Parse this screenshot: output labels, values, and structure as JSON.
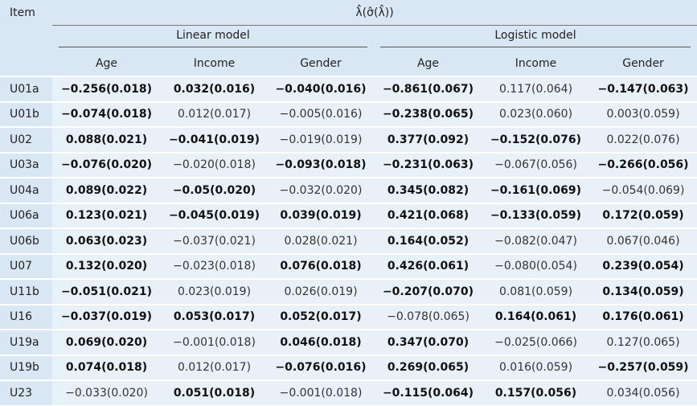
{
  "header": {
    "item": "Item",
    "estimate": "λ̂(σ̂(λ̂))",
    "groups": [
      "Linear model",
      "Logistic model"
    ],
    "columns": [
      "Age",
      "Income",
      "Gender",
      "Age",
      "Income",
      "Gender"
    ]
  },
  "table": {
    "rows": [
      {
        "item": "U01a",
        "cells": [
          "−0.256(0.018)",
          "0.032(0.016)",
          "−0.040(0.016)",
          "−0.861(0.067)",
          "0.117(0.064)",
          "−0.147(0.063)"
        ],
        "bold": [
          true,
          true,
          true,
          true,
          false,
          true
        ]
      },
      {
        "item": "U01b",
        "cells": [
          "−0.074(0.018)",
          "0.012(0.017)",
          "−0.005(0.016)",
          "−0.238(0.065)",
          "0.023(0.060)",
          "0.003(0.059)"
        ],
        "bold": [
          true,
          false,
          false,
          true,
          false,
          false
        ]
      },
      {
        "item": "U02",
        "cells": [
          "0.088(0.021)",
          "−0.041(0.019)",
          "−0.019(0.019)",
          "0.377(0.092)",
          "−0.152(0.076)",
          "0.022(0.076)"
        ],
        "bold": [
          true,
          true,
          false,
          true,
          true,
          false
        ]
      },
      {
        "item": "U03a",
        "cells": [
          "−0.076(0.020)",
          "−0.020(0.018)",
          "−0.093(0.018)",
          "−0.231(0.063)",
          "−0.067(0.056)",
          "−0.266(0.056)"
        ],
        "bold": [
          true,
          false,
          true,
          true,
          false,
          true
        ]
      },
      {
        "item": "U04a",
        "cells": [
          "0.089(0.022)",
          "−0.05(0.020)",
          "−0.032(0.020)",
          "0.345(0.082)",
          "−0.161(0.069)",
          "−0.054(0.069)"
        ],
        "bold": [
          true,
          true,
          false,
          true,
          true,
          false
        ]
      },
      {
        "item": "U06a",
        "cells": [
          "0.123(0.021)",
          "−0.045(0.019)",
          "0.039(0.019)",
          "0.421(0.068)",
          "−0.133(0.059)",
          "0.172(0.059)"
        ],
        "bold": [
          true,
          true,
          true,
          true,
          true,
          true
        ]
      },
      {
        "item": "U06b",
        "cells": [
          "0.063(0.023)",
          "−0.037(0.021)",
          "0.028(0.021)",
          "0.164(0.052)",
          "−0.082(0.047)",
          "0.067(0.046)"
        ],
        "bold": [
          true,
          false,
          false,
          true,
          false,
          false
        ]
      },
      {
        "item": "U07",
        "cells": [
          "0.132(0.020)",
          "−0.023(0.018)",
          "0.076(0.018)",
          "0.426(0.061)",
          "−0.080(0.054)",
          "0.239(0.054)"
        ],
        "bold": [
          true,
          false,
          true,
          true,
          false,
          true
        ]
      },
      {
        "item": "U11b",
        "cells": [
          "−0.051(0.021)",
          "0.023(0.019)",
          "0.026(0.019)",
          "−0.207(0.070)",
          "0.081(0.059)",
          "0.134(0.059)"
        ],
        "bold": [
          true,
          false,
          false,
          true,
          false,
          true
        ]
      },
      {
        "item": "U16",
        "cells": [
          "−0.037(0.019)",
          "0.053(0.017)",
          "0.052(0.017)",
          "−0.078(0.065)",
          "0.164(0.061)",
          "0.176(0.061)"
        ],
        "bold": [
          true,
          true,
          true,
          false,
          true,
          true
        ]
      },
      {
        "item": "U19a",
        "cells": [
          "0.069(0.020)",
          "−0.001(0.018)",
          "0.046(0.018)",
          "0.347(0.070)",
          "−0.025(0.066)",
          "0.127(0.065)"
        ],
        "bold": [
          true,
          false,
          true,
          true,
          false,
          false
        ]
      },
      {
        "item": "U19b",
        "cells": [
          "0.074(0.018)",
          "0.012(0.017)",
          "−0.076(0.016)",
          "0.269(0.065)",
          "0.016(0.059)",
          "−0.257(0.059)"
        ],
        "bold": [
          true,
          false,
          true,
          true,
          false,
          true
        ]
      },
      {
        "item": "U23",
        "cells": [
          "−0.033(0.020)",
          "0.051(0.018)",
          "−0.001(0.018)",
          "−0.115(0.064)",
          "0.157(0.056)",
          "0.034(0.056)"
        ],
        "bold": [
          false,
          true,
          false,
          true,
          true,
          false
        ]
      }
    ]
  }
}
